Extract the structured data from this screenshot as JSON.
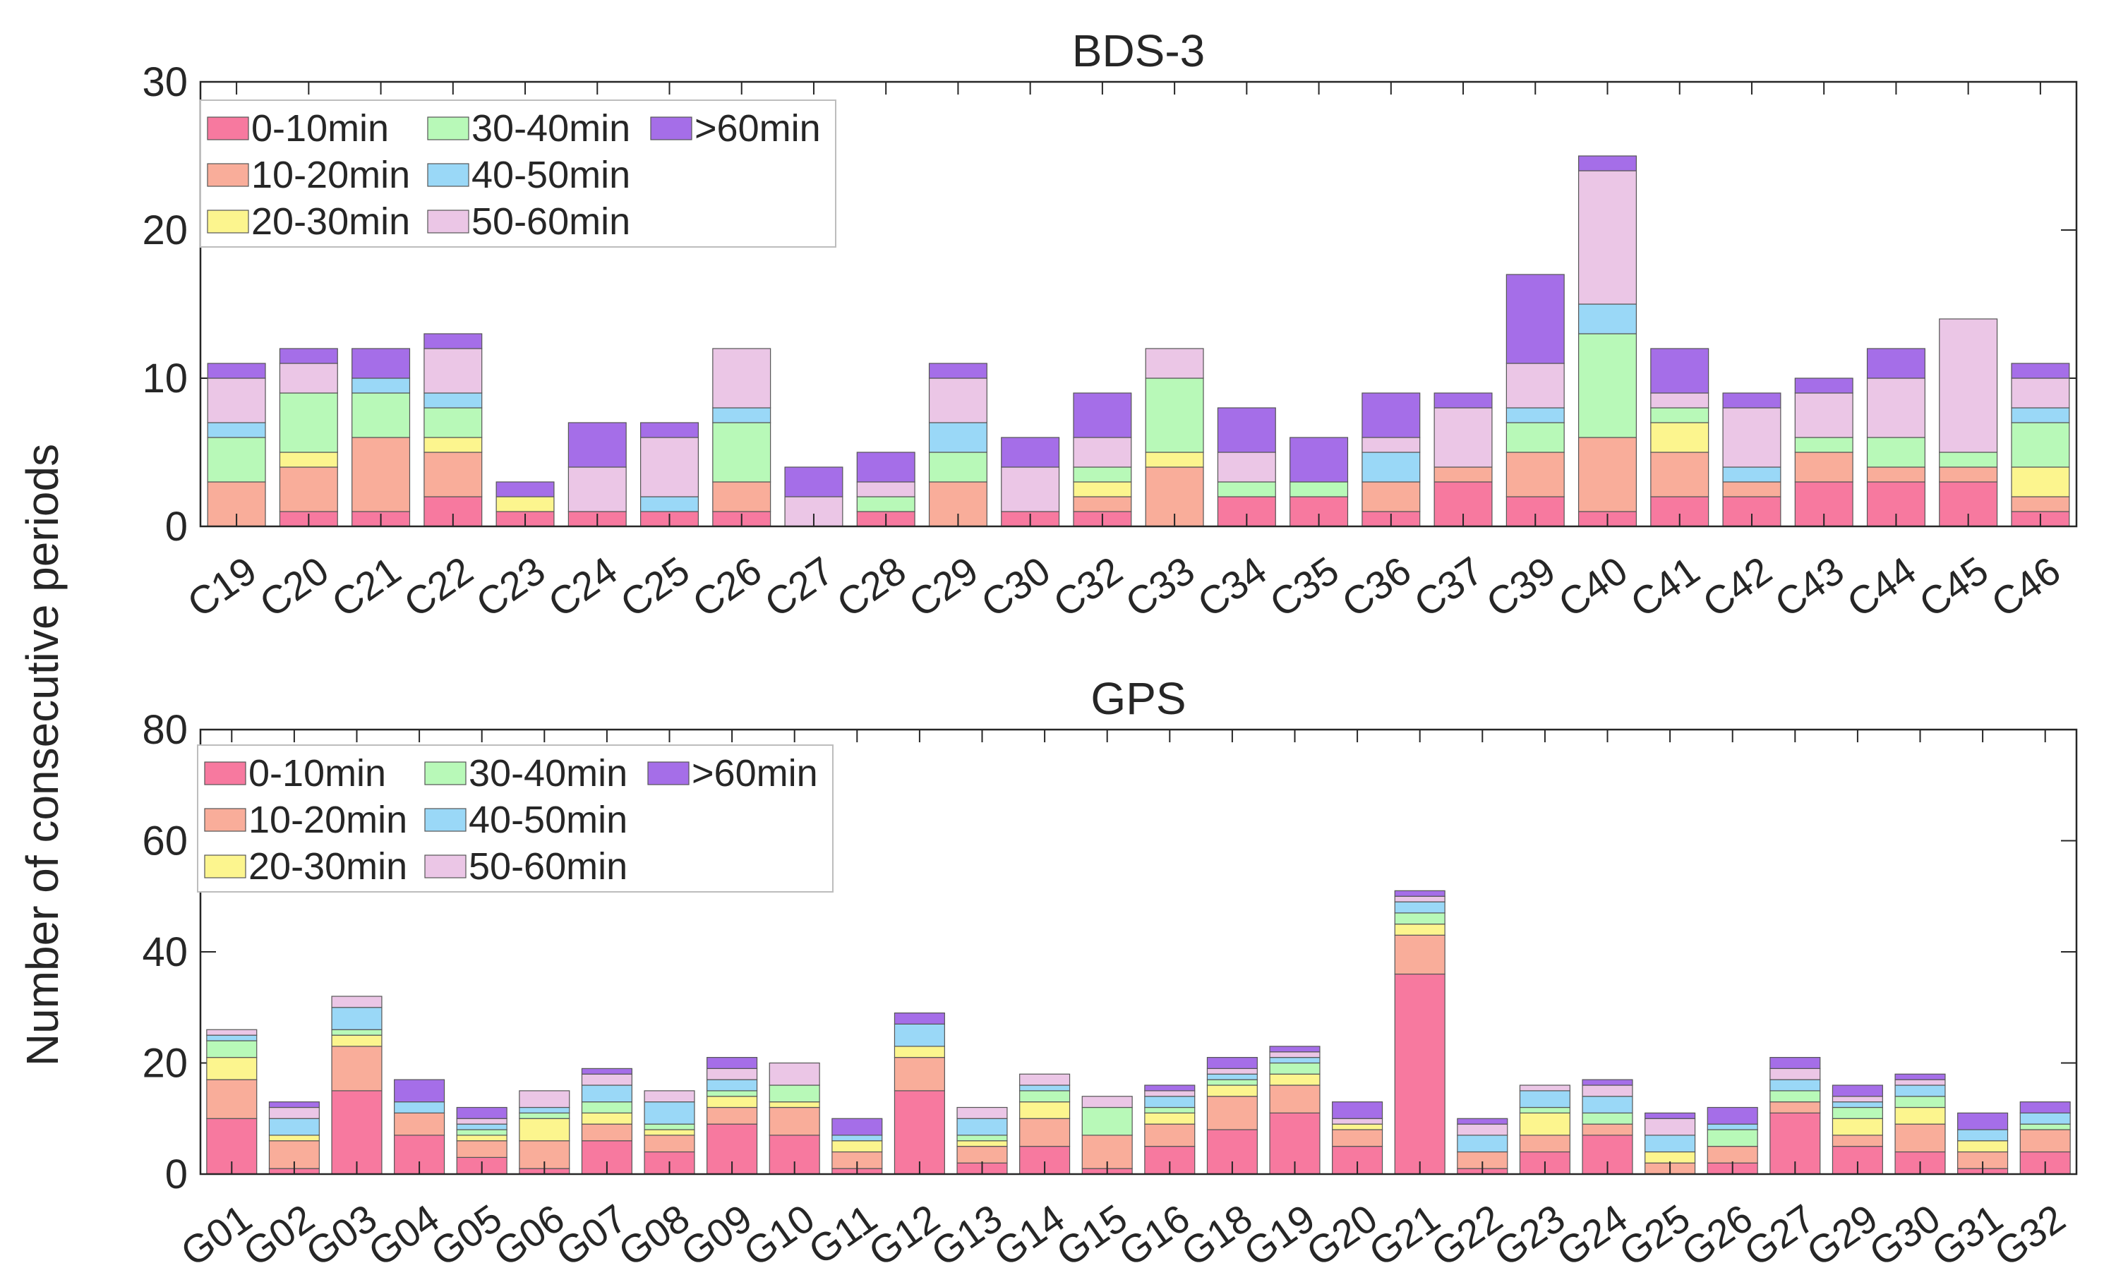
{
  "shared_ylabel": "Number of consecutive periods",
  "colors": {
    "0-10min": "#f7799f",
    "10-20min": "#f9ad9a",
    "20-30min": "#fcf58e",
    "30-40min": "#b8f9b8",
    "40-50min": "#9ad8f7",
    "50-60min": "#ebc6e6",
    ">60min": "#a56ee8"
  },
  "chart_data": [
    {
      "type": "bar",
      "stacked": true,
      "title": "BDS-3",
      "xlabel": "",
      "ylabel": "Number of consecutive periods",
      "ylim": [
        0,
        30
      ],
      "yticks": [
        0,
        10,
        20,
        30
      ],
      "legend_position": "top-left",
      "categories": [
        "C19",
        "C20",
        "C21",
        "C22",
        "C23",
        "C24",
        "C25",
        "C26",
        "C27",
        "C28",
        "C29",
        "C30",
        "C32",
        "C33",
        "C34",
        "C35",
        "C36",
        "C37",
        "C39",
        "C40",
        "C41",
        "C42",
        "C43",
        "C44",
        "C45",
        "C46"
      ],
      "series": [
        {
          "name": "0-10min",
          "values": [
            0,
            1,
            1,
            2,
            1,
            1,
            1,
            1,
            0,
            1,
            0,
            1,
            1,
            0,
            2,
            2,
            1,
            3,
            2,
            1,
            2,
            2,
            3,
            3,
            3,
            1
          ]
        },
        {
          "name": "10-20min",
          "values": [
            3,
            3,
            5,
            3,
            0,
            0,
            0,
            2,
            0,
            0,
            3,
            0,
            1,
            4,
            0,
            0,
            2,
            1,
            3,
            5,
            3,
            1,
            2,
            1,
            1,
            1
          ]
        },
        {
          "name": "20-30min",
          "values": [
            0,
            1,
            0,
            1,
            1,
            0,
            0,
            0,
            0,
            0,
            0,
            0,
            1,
            1,
            0,
            0,
            0,
            0,
            0,
            0,
            2,
            0,
            0,
            0,
            0,
            2
          ]
        },
        {
          "name": "30-40min",
          "values": [
            3,
            4,
            3,
            2,
            0,
            0,
            0,
            4,
            0,
            1,
            2,
            0,
            1,
            5,
            1,
            1,
            0,
            0,
            2,
            7,
            1,
            0,
            1,
            2,
            1,
            3
          ]
        },
        {
          "name": "40-50min",
          "values": [
            1,
            0,
            1,
            1,
            0,
            0,
            1,
            1,
            0,
            0,
            2,
            0,
            0,
            0,
            0,
            0,
            2,
            0,
            1,
            2,
            0,
            1,
            0,
            0,
            0,
            1
          ]
        },
        {
          "name": "50-60min",
          "values": [
            3,
            2,
            0,
            3,
            0,
            3,
            4,
            4,
            2,
            1,
            3,
            3,
            2,
            2,
            2,
            0,
            1,
            4,
            3,
            9,
            1,
            4,
            3,
            4,
            9,
            2
          ]
        },
        {
          "name": ">60min",
          "values": [
            1,
            1,
            2,
            1,
            1,
            3,
            1,
            0,
            2,
            2,
            1,
            2,
            3,
            0,
            3,
            3,
            3,
            1,
            6,
            1,
            3,
            1,
            1,
            2,
            0,
            1
          ]
        }
      ],
      "legend": [
        "0-10min",
        "30-40min",
        ">60min",
        "10-20min",
        "40-50min",
        "20-30min",
        "50-60min"
      ]
    },
    {
      "type": "bar",
      "stacked": true,
      "title": "GPS",
      "xlabel": "",
      "ylabel": "Number of consecutive periods",
      "ylim": [
        0,
        80
      ],
      "yticks": [
        0,
        20,
        40,
        60,
        80
      ],
      "legend_position": "top-left",
      "categories": [
        "G01",
        "G02",
        "G03",
        "G04",
        "G05",
        "G06",
        "G07",
        "G08",
        "G09",
        "G10",
        "G11",
        "G12",
        "G13",
        "G14",
        "G15",
        "G16",
        "G18",
        "G19",
        "G20",
        "G21",
        "G22",
        "G23",
        "G24",
        "G25",
        "G26",
        "G27",
        "G29",
        "G30",
        "G31",
        "G32"
      ],
      "series": [
        {
          "name": "0-10min",
          "values": [
            10,
            1,
            15,
            7,
            3,
            1,
            6,
            4,
            9,
            7,
            1,
            15,
            2,
            5,
            1,
            5,
            8,
            11,
            5,
            36,
            1,
            4,
            7,
            0,
            2,
            11,
            5,
            4,
            1,
            4
          ]
        },
        {
          "name": "10-20min",
          "values": [
            7,
            5,
            8,
            4,
            3,
            5,
            3,
            3,
            3,
            5,
            3,
            6,
            3,
            5,
            6,
            4,
            6,
            5,
            3,
            7,
            3,
            3,
            2,
            2,
            3,
            2,
            2,
            5,
            3,
            4
          ]
        },
        {
          "name": "20-30min",
          "values": [
            4,
            1,
            2,
            0,
            1,
            4,
            2,
            1,
            2,
            1,
            2,
            2,
            1,
            3,
            0,
            2,
            2,
            2,
            1,
            2,
            0,
            4,
            0,
            2,
            0,
            0,
            3,
            3,
            2,
            0
          ]
        },
        {
          "name": "30-40min",
          "values": [
            3,
            0,
            1,
            0,
            1,
            1,
            2,
            1,
            1,
            3,
            0,
            0,
            1,
            2,
            5,
            1,
            1,
            2,
            0,
            2,
            0,
            1,
            2,
            0,
            3,
            2,
            2,
            2,
            0,
            1
          ]
        },
        {
          "name": "40-50min",
          "values": [
            1,
            3,
            4,
            2,
            1,
            1,
            3,
            4,
            2,
            0,
            1,
            4,
            3,
            1,
            0,
            2,
            1,
            1,
            0,
            2,
            3,
            3,
            3,
            3,
            1,
            2,
            1,
            2,
            2,
            2
          ]
        },
        {
          "name": "50-60min",
          "values": [
            1,
            2,
            2,
            0,
            1,
            3,
            2,
            2,
            2,
            4,
            0,
            0,
            2,
            2,
            2,
            1,
            1,
            1,
            1,
            1,
            2,
            1,
            2,
            3,
            0,
            2,
            1,
            1,
            0,
            0
          ]
        },
        {
          "name": ">60min",
          "values": [
            0,
            1,
            0,
            4,
            2,
            0,
            1,
            0,
            2,
            0,
            3,
            2,
            0,
            0,
            0,
            1,
            2,
            1,
            3,
            1,
            1,
            0,
            1,
            1,
            3,
            2,
            2,
            1,
            3,
            2
          ]
        }
      ],
      "legend": [
        "0-10min",
        "30-40min",
        ">60min",
        "10-20min",
        "40-50min",
        "20-30min",
        "50-60min"
      ]
    }
  ]
}
